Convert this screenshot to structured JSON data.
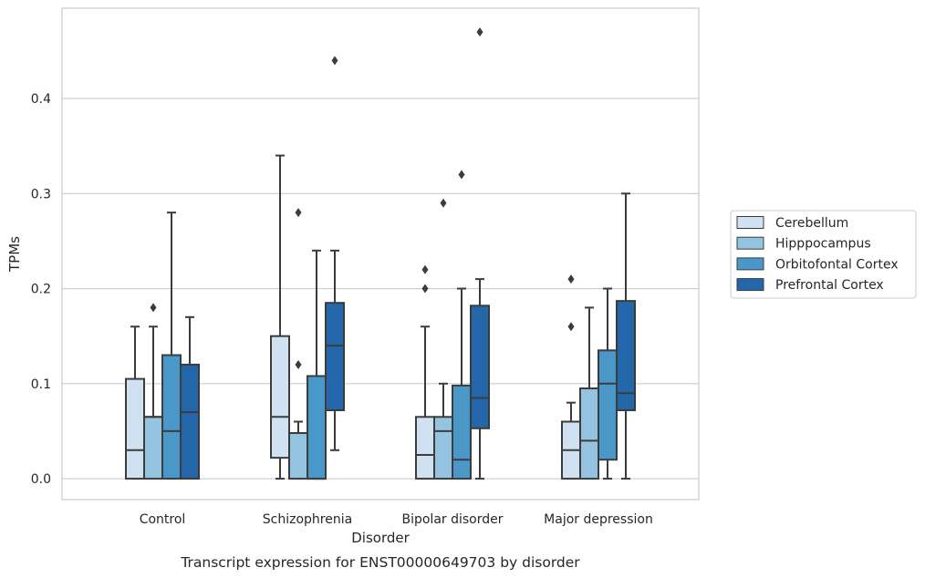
{
  "chart_data": {
    "type": "box",
    "xlabel": "Disorder",
    "ylabel": "TPMs",
    "caption": "Transcript expression for ENST00000649703 by disorder",
    "ylim": [
      -0.022,
      0.495
    ],
    "yticks": [
      "0.0",
      "0.1",
      "0.2",
      "0.3",
      "0.4"
    ],
    "grid": "horizontal",
    "legend_position": "outside-right",
    "categories": [
      "Control",
      "Schizophrenia",
      "Bipolar disorder",
      "Major depression"
    ],
    "series": [
      {
        "name": "Cerebellum",
        "color": "#d0e1f2",
        "boxes": [
          {
            "whisker_low": 0.0,
            "q1": 0.0,
            "median": 0.03,
            "q3": 0.105,
            "whisker_high": 0.16,
            "outliers": []
          },
          {
            "whisker_low": 0.0,
            "q1": 0.022,
            "median": 0.065,
            "q3": 0.15,
            "whisker_high": 0.34,
            "outliers": []
          },
          {
            "whisker_low": 0.0,
            "q1": 0.0,
            "median": 0.025,
            "q3": 0.065,
            "whisker_high": 0.16,
            "outliers": [
              0.2,
              0.22
            ]
          },
          {
            "whisker_low": 0.0,
            "q1": 0.0,
            "median": 0.03,
            "q3": 0.06,
            "whisker_high": 0.08,
            "outliers": [
              0.16,
              0.21
            ]
          }
        ]
      },
      {
        "name": "Hipppocampus",
        "color": "#94c4df",
        "boxes": [
          {
            "whisker_low": 0.0,
            "q1": 0.0,
            "median": 0.065,
            "q3": 0.065,
            "whisker_high": 0.16,
            "outliers": [
              0.18
            ]
          },
          {
            "whisker_low": 0.0,
            "q1": 0.0,
            "median": 0.048,
            "q3": 0.048,
            "whisker_high": 0.06,
            "outliers": [
              0.12,
              0.28
            ]
          },
          {
            "whisker_low": 0.0,
            "q1": 0.0,
            "median": 0.05,
            "q3": 0.065,
            "whisker_high": 0.1,
            "outliers": [
              0.29
            ]
          },
          {
            "whisker_low": 0.0,
            "q1": 0.0,
            "median": 0.04,
            "q3": 0.095,
            "whisker_high": 0.18,
            "outliers": []
          }
        ]
      },
      {
        "name": "Orbitofontal Cortex",
        "color": "#4a98c9",
        "boxes": [
          {
            "whisker_low": 0.0,
            "q1": 0.0,
            "median": 0.05,
            "q3": 0.13,
            "whisker_high": 0.28,
            "outliers": []
          },
          {
            "whisker_low": 0.0,
            "q1": 0.0,
            "median": 0.0,
            "q3": 0.108,
            "whisker_high": 0.24,
            "outliers": []
          },
          {
            "whisker_low": 0.0,
            "q1": 0.0,
            "median": 0.02,
            "q3": 0.098,
            "whisker_high": 0.2,
            "outliers": [
              0.32
            ]
          },
          {
            "whisker_low": 0.0,
            "q1": 0.02,
            "median": 0.1,
            "q3": 0.135,
            "whisker_high": 0.2,
            "outliers": []
          }
        ]
      },
      {
        "name": "Prefrontal Cortex",
        "color": "#2366a9",
        "boxes": [
          {
            "whisker_low": 0.0,
            "q1": 0.0,
            "median": 0.07,
            "q3": 0.12,
            "whisker_high": 0.17,
            "outliers": []
          },
          {
            "whisker_low": 0.03,
            "q1": 0.072,
            "median": 0.14,
            "q3": 0.185,
            "whisker_high": 0.24,
            "outliers": [
              0.44
            ]
          },
          {
            "whisker_low": 0.0,
            "q1": 0.053,
            "median": 0.085,
            "q3": 0.182,
            "whisker_high": 0.21,
            "outliers": [
              0.47
            ]
          },
          {
            "whisker_low": 0.0,
            "q1": 0.072,
            "median": 0.09,
            "q3": 0.187,
            "whisker_high": 0.3,
            "outliers": []
          }
        ]
      }
    ]
  }
}
